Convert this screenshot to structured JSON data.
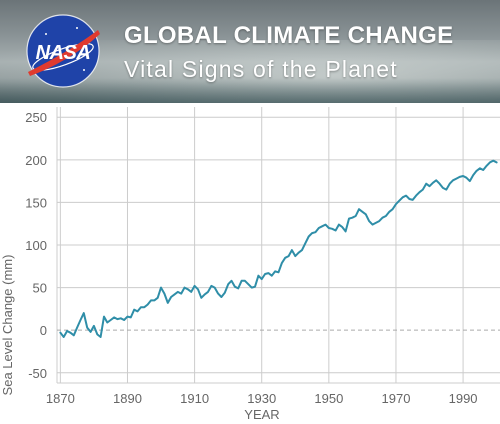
{
  "header": {
    "logo_text": "NASA",
    "title": "GLOBAL CLIMATE CHANGE",
    "subtitle": "Vital Signs of the Planet"
  },
  "colors": {
    "line": "#2f8ea8",
    "grid": "#cccccc",
    "zero_line": "#aaaaaa",
    "text": "#666666",
    "logo_blue": "#1f43a8",
    "logo_red": "#e03a2e"
  },
  "chart_data": {
    "type": "line",
    "title": "",
    "xlabel": "YEAR",
    "ylabel": "Sea Level Change (mm)",
    "xlim": [
      1869,
      2001
    ],
    "ylim": [
      -62,
      262
    ],
    "x_ticks": [
      1870,
      1890,
      1910,
      1930,
      1950,
      1970,
      1990
    ],
    "y_ticks": [
      -50,
      0,
      50,
      100,
      150,
      200,
      250
    ],
    "grid": true,
    "legend": "none",
    "zero_line": "dashed",
    "series": [
      {
        "x": [
          1870,
          1871,
          1872,
          1873,
          1874,
          1875,
          1876,
          1877,
          1878,
          1879,
          1880,
          1881,
          1882,
          1883,
          1884,
          1885,
          1886,
          1887,
          1888,
          1889,
          1890,
          1891,
          1892,
          1893,
          1894,
          1895,
          1896,
          1897,
          1898,
          1899,
          1900,
          1901,
          1902,
          1903,
          1904,
          1905,
          1906,
          1907,
          1908,
          1909,
          1910,
          1911,
          1912,
          1913,
          1914,
          1915,
          1916,
          1917,
          1918,
          1919,
          1920,
          1921,
          1922,
          1923,
          1924,
          1925,
          1926,
          1927,
          1928,
          1929,
          1930,
          1931,
          1932,
          1933,
          1934,
          1935,
          1936,
          1937,
          1938,
          1939,
          1940,
          1941,
          1942,
          1943,
          1944,
          1945,
          1946,
          1947,
          1948,
          1949,
          1950,
          1951,
          1952,
          1953,
          1954,
          1955,
          1956,
          1957,
          1958,
          1959,
          1960,
          1961,
          1962,
          1963,
          1964,
          1965,
          1966,
          1967,
          1968,
          1969,
          1970,
          1971,
          1972,
          1973,
          1974,
          1975,
          1976,
          1977,
          1978,
          1979,
          1980,
          1981,
          1982,
          1983,
          1984,
          1985,
          1986,
          1987,
          1988,
          1989,
          1990,
          1991,
          1992,
          1993,
          1994,
          1995,
          1996,
          1997,
          1998,
          1999,
          2000
        ],
        "y": [
          -3,
          -8,
          -1,
          -3,
          -6,
          3,
          12,
          20,
          3,
          -2,
          5,
          -5,
          -8,
          16,
          9,
          12,
          15,
          13,
          14,
          12,
          16,
          15,
          24,
          22,
          27,
          27,
          30,
          35,
          35,
          38,
          50,
          43,
          32,
          39,
          42,
          45,
          43,
          50,
          48,
          45,
          52,
          48,
          38,
          42,
          45,
          52,
          50,
          43,
          39,
          44,
          54,
          58,
          51,
          49,
          58,
          58,
          54,
          50,
          51,
          64,
          60,
          66,
          67,
          64,
          69,
          68,
          79,
          85,
          87,
          94,
          87,
          91,
          94,
          102,
          110,
          114,
          115,
          120,
          122,
          124,
          120,
          119,
          117,
          124,
          121,
          116,
          131,
          132,
          134,
          142,
          139,
          136,
          128,
          124,
          126,
          128,
          132,
          134,
          139,
          142,
          148,
          152,
          156,
          158,
          154,
          153,
          158,
          162,
          165,
          172,
          169,
          173,
          176,
          172,
          167,
          165,
          172,
          176,
          178,
          180,
          181,
          179,
          175,
          182,
          187,
          190,
          188,
          193,
          197,
          199,
          197
        ]
      }
    ]
  }
}
